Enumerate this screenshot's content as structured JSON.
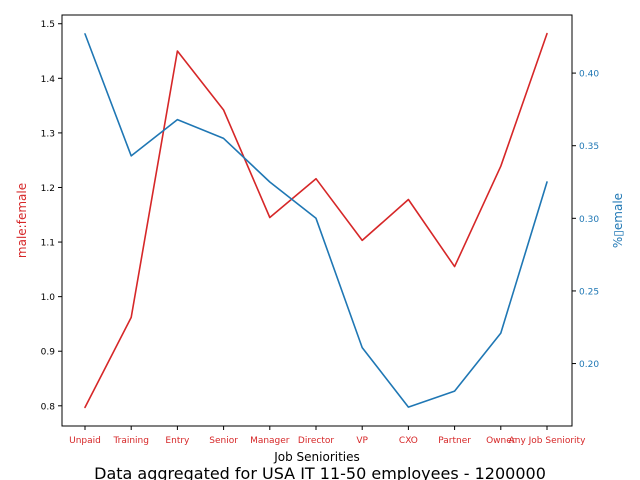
{
  "chart_data": {
    "type": "line",
    "title": "Data aggregated for USA IT 11-50 employees - 1200000",
    "xlabel": "Job Seniorities",
    "categories": [
      "Unpaid",
      "Training",
      "Entry",
      "Senior",
      "Manager",
      "Director",
      "VP",
      "CXO",
      "Partner",
      "Owner",
      "Any Job Seniority"
    ],
    "series": [
      {
        "name": "male:female",
        "axis": "left",
        "color": "#d62728",
        "values": [
          0.797,
          0.962,
          1.45,
          1.342,
          1.145,
          1.216,
          1.103,
          1.178,
          1.055,
          1.239,
          1.482
        ]
      },
      {
        "name": "%female",
        "axis": "right",
        "color": "#1f77b4",
        "values": [
          0.427,
          0.343,
          0.368,
          0.355,
          0.325,
          0.3,
          0.211,
          0.17,
          0.181,
          0.221,
          0.325
        ]
      }
    ],
    "left_axis": {
      "label": "male:female",
      "color": "#d62728",
      "ylim": [
        0.763,
        1.516
      ],
      "ticks": [
        0.8,
        0.9,
        1.0,
        1.1,
        1.2,
        1.3,
        1.4,
        1.5
      ],
      "tick_labels": [
        "0.8",
        "0.9",
        "1.0",
        "1.1",
        "1.2",
        "1.3",
        "1.4",
        "1.5"
      ]
    },
    "right_axis": {
      "label": "%▯emale",
      "color": "#1f77b4",
      "ylim": [
        0.157,
        0.44
      ],
      "ticks": [
        0.2,
        0.25,
        0.3,
        0.35,
        0.4
      ],
      "tick_labels": [
        "0.20",
        "0.25",
        "0.30",
        "0.35",
        "0.40"
      ]
    },
    "grid": false,
    "legend": "none"
  }
}
